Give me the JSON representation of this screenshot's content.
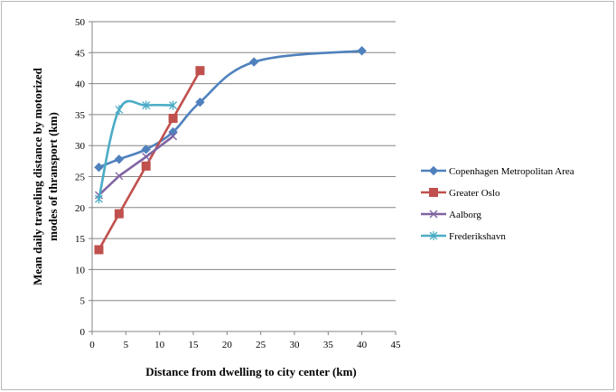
{
  "chart_data": {
    "type": "line",
    "xlabel": "Distance from dwelling to city center (km)",
    "ylabel": [
      "Mean daily traveling distance by motorized",
      "modes of thransport (km)"
    ],
    "xlim": [
      0,
      45
    ],
    "ylim": [
      0,
      50
    ],
    "xticks": [
      0,
      5,
      10,
      15,
      20,
      25,
      30,
      35,
      40,
      45
    ],
    "yticks": [
      0,
      5,
      10,
      15,
      20,
      25,
      30,
      35,
      40,
      45,
      50
    ],
    "grid": "horizontal",
    "legend_position": "right",
    "series": [
      {
        "name": "Copenhagen Metropolitan Area",
        "color": "#4F81BD",
        "marker": "diamond",
        "smooth": true,
        "x": [
          1,
          4,
          8,
          12,
          16,
          24,
          40
        ],
        "y": [
          26.5,
          27.8,
          29.4,
          32.2,
          37.0,
          43.5,
          45.3
        ]
      },
      {
        "name": "Greater Oslo",
        "color": "#C0504D",
        "marker": "square",
        "smooth": false,
        "x": [
          1,
          4,
          8,
          12,
          16
        ],
        "y": [
          13.2,
          19.0,
          26.7,
          34.4,
          42.1
        ]
      },
      {
        "name": "Aalborg",
        "color": "#8064A2",
        "marker": "x",
        "smooth": false,
        "x": [
          1,
          4,
          8,
          12
        ],
        "y": [
          22.0,
          25.1,
          28.2,
          31.5
        ]
      },
      {
        "name": "Frederikshavn",
        "color": "#4BACC6",
        "marker": "star",
        "smooth": true,
        "x": [
          1,
          4,
          8,
          12
        ],
        "y": [
          21.4,
          35.8,
          36.5,
          36.5
        ]
      }
    ]
  }
}
